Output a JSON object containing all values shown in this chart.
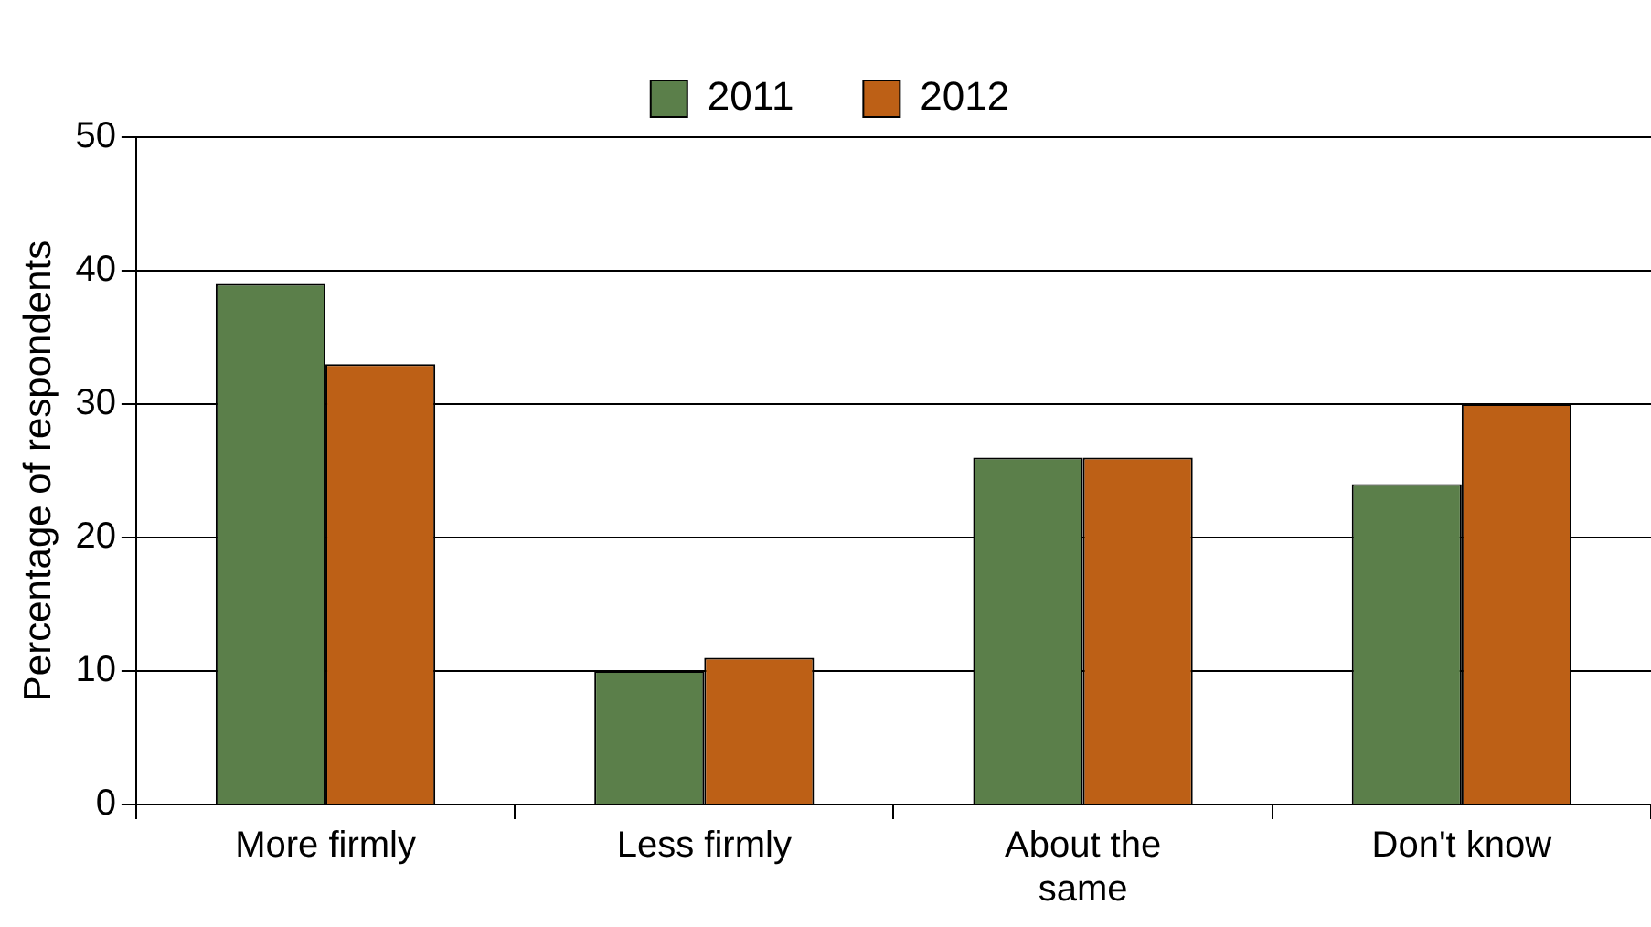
{
  "chart_data": {
    "type": "bar",
    "ylabel": "Percentage of respondents",
    "categories": [
      "More firmly",
      "Less firmly",
      "About the same",
      "Don't know"
    ],
    "series": [
      {
        "name": "2011",
        "color": "#5b7f4a",
        "values": [
          39,
          10,
          26,
          24
        ]
      },
      {
        "name": "2012",
        "color": "#bd6016",
        "values": [
          33,
          11,
          26,
          30
        ]
      }
    ],
    "ylim": [
      0,
      50
    ],
    "yticks": [
      0,
      10,
      20,
      30,
      40,
      50
    ],
    "grid": "y",
    "legend": "top"
  }
}
